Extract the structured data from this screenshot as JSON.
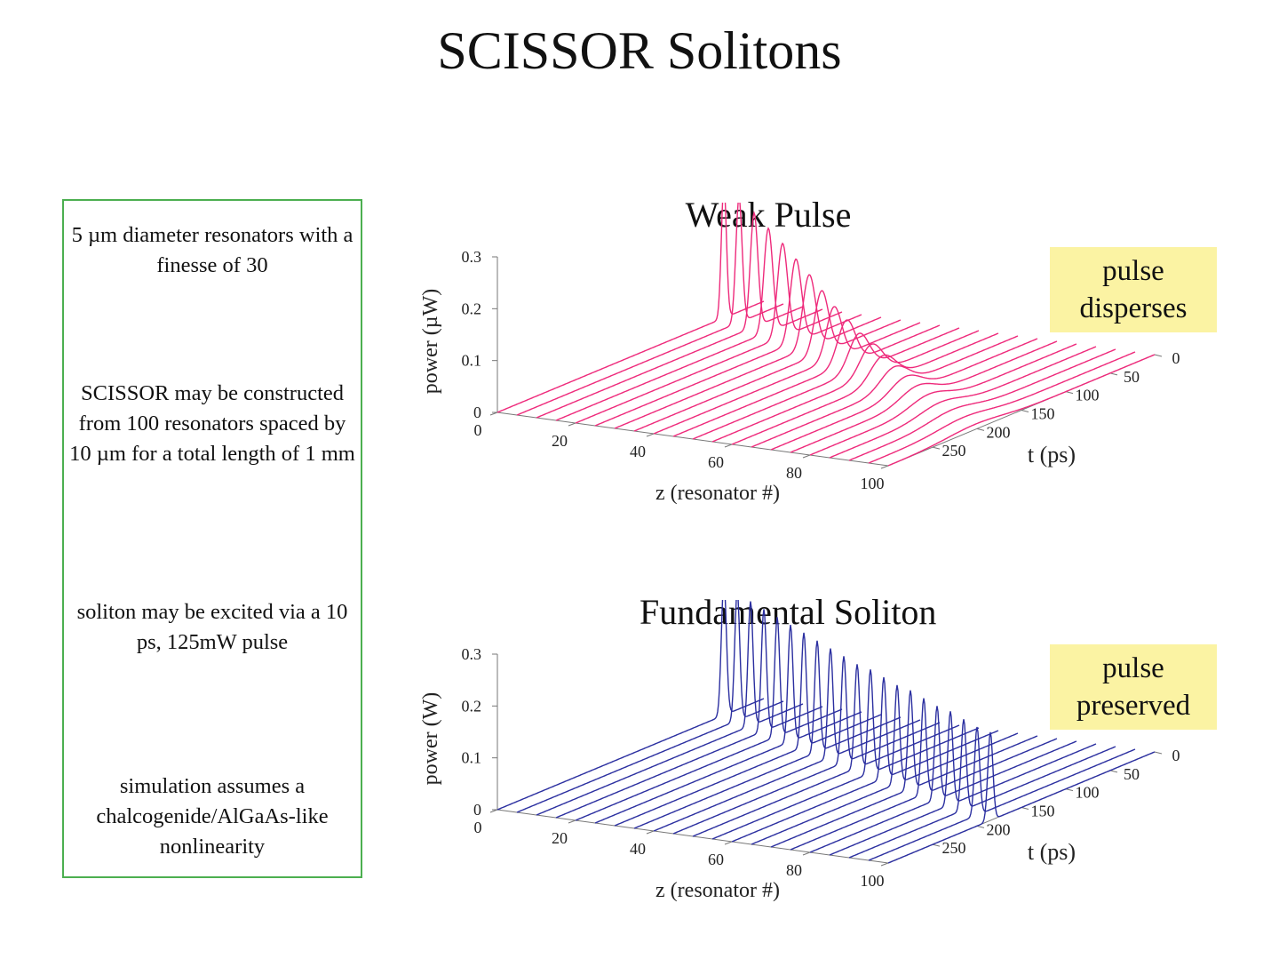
{
  "title": "SCISSOR Solitons",
  "notes": [
    "5 µm diameter resonators with a finesse of 30",
    "SCISSOR may be constructed from 100 resonators spaced by 10 µm for a total length of 1 mm",
    "soliton may be excited via a 10 ps, 125mW pulse",
    "simulation assumes a chalcogenide/AlGaAs-like nonlinearity"
  ],
  "chart_data": [
    {
      "type": "line",
      "title": "Weak Pulse",
      "badge": "pulse disperses",
      "xlabel": "z (resonator #)",
      "ylabel": "power (µW)",
      "tlabel": "t (ps)",
      "xlim": [
        0,
        100
      ],
      "tlim": [
        0,
        300
      ],
      "zlim": [
        0,
        0.3
      ],
      "x_ticks": [
        "0",
        "20",
        "40",
        "60",
        "80",
        "100"
      ],
      "t_ticks": [
        "0",
        "50",
        "100",
        "150",
        "200",
        "250"
      ],
      "z_ticks": [
        "0",
        "0.1",
        "0.2",
        "0.3"
      ],
      "color": "#ee2a7b",
      "series": [
        {
          "z": 0,
          "peak": 0.26,
          "center": 45,
          "width": 4
        },
        {
          "z": 5,
          "peak": 0.24,
          "center": 50,
          "width": 5
        },
        {
          "z": 10,
          "peak": 0.22,
          "center": 55,
          "width": 6
        },
        {
          "z": 15,
          "peak": 0.2,
          "center": 61,
          "width": 7
        },
        {
          "z": 20,
          "peak": 0.18,
          "center": 67,
          "width": 8
        },
        {
          "z": 25,
          "peak": 0.16,
          "center": 74,
          "width": 9
        },
        {
          "z": 30,
          "peak": 0.14,
          "center": 81,
          "width": 10
        },
        {
          "z": 35,
          "peak": 0.12,
          "center": 89,
          "width": 11
        },
        {
          "z": 40,
          "peak": 0.1,
          "center": 97,
          "width": 12
        },
        {
          "z": 45,
          "peak": 0.085,
          "center": 105,
          "width": 14
        },
        {
          "z": 50,
          "peak": 0.07,
          "center": 113,
          "width": 16
        },
        {
          "z": 55,
          "peak": 0.06,
          "center": 121,
          "width": 18
        },
        {
          "z": 60,
          "peak": 0.05,
          "center": 130,
          "width": 20
        },
        {
          "z": 65,
          "peak": 0.04,
          "center": 139,
          "width": 22
        },
        {
          "z": 70,
          "peak": 0.033,
          "center": 148,
          "width": 24
        },
        {
          "z": 75,
          "peak": 0.027,
          "center": 157,
          "width": 27
        },
        {
          "z": 80,
          "peak": 0.022,
          "center": 166,
          "width": 30
        },
        {
          "z": 85,
          "peak": 0.018,
          "center": 175,
          "width": 33
        },
        {
          "z": 90,
          "peak": 0.015,
          "center": 184,
          "width": 36
        },
        {
          "z": 95,
          "peak": 0.012,
          "center": 193,
          "width": 40
        },
        {
          "z": 100,
          "peak": 0.01,
          "center": 202,
          "width": 44
        }
      ]
    },
    {
      "type": "line",
      "title": "Fundamental Soliton",
      "badge": "pulse preserved",
      "xlabel": "z (resonator #)",
      "ylabel": "power (W)",
      "tlabel": "t (ps)",
      "xlim": [
        0,
        100
      ],
      "tlim": [
        0,
        300
      ],
      "zlim": [
        0,
        0.3
      ],
      "x_ticks": [
        "0",
        "20",
        "40",
        "60",
        "80",
        "100"
      ],
      "t_ticks": [
        "0",
        "50",
        "100",
        "150",
        "200",
        "250"
      ],
      "z_ticks": [
        "0",
        "0.1",
        "0.2",
        "0.3"
      ],
      "color": "#2b2fa0",
      "series": [
        {
          "z": 0,
          "peak": 0.26,
          "center": 45,
          "width": 4
        },
        {
          "z": 5,
          "peak": 0.25,
          "center": 52,
          "width": 4
        },
        {
          "z": 10,
          "peak": 0.24,
          "center": 59,
          "width": 4
        },
        {
          "z": 15,
          "peak": 0.235,
          "center": 66,
          "width": 4
        },
        {
          "z": 20,
          "peak": 0.23,
          "center": 73,
          "width": 4
        },
        {
          "z": 25,
          "peak": 0.225,
          "center": 80,
          "width": 4
        },
        {
          "z": 30,
          "peak": 0.22,
          "center": 87,
          "width": 4
        },
        {
          "z": 35,
          "peak": 0.215,
          "center": 94,
          "width": 4
        },
        {
          "z": 40,
          "peak": 0.21,
          "center": 101,
          "width": 4
        },
        {
          "z": 45,
          "peak": 0.205,
          "center": 108,
          "width": 4
        },
        {
          "z": 50,
          "peak": 0.2,
          "center": 115,
          "width": 4
        },
        {
          "z": 55,
          "peak": 0.2,
          "center": 122,
          "width": 4
        },
        {
          "z": 60,
          "peak": 0.195,
          "center": 129,
          "width": 4
        },
        {
          "z": 65,
          "peak": 0.19,
          "center": 136,
          "width": 4
        },
        {
          "z": 70,
          "peak": 0.19,
          "center": 143,
          "width": 4
        },
        {
          "z": 75,
          "peak": 0.185,
          "center": 150,
          "width": 4
        },
        {
          "z": 80,
          "peak": 0.18,
          "center": 157,
          "width": 4
        },
        {
          "z": 85,
          "peak": 0.18,
          "center": 164,
          "width": 4
        },
        {
          "z": 90,
          "peak": 0.175,
          "center": 171,
          "width": 4
        },
        {
          "z": 95,
          "peak": 0.17,
          "center": 178,
          "width": 4
        },
        {
          "z": 100,
          "peak": 0.17,
          "center": 185,
          "width": 4
        }
      ]
    }
  ]
}
